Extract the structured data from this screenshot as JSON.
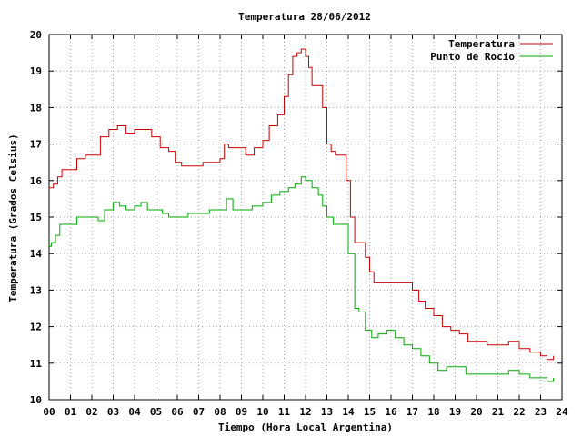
{
  "chart_data": {
    "type": "line",
    "title": "Temperatura 28/06/2012",
    "xlabel": "Tiempo (Hora Local Argentina)",
    "ylabel": "Temperatura (Grados Celsius)",
    "xlim": [
      0,
      24
    ],
    "ylim": [
      10,
      20
    ],
    "x_ticks": [
      "00",
      "01",
      "02",
      "03",
      "04",
      "05",
      "06",
      "07",
      "08",
      "09",
      "10",
      "11",
      "12",
      "13",
      "14",
      "15",
      "16",
      "17",
      "18",
      "19",
      "20",
      "21",
      "22",
      "23",
      "24"
    ],
    "y_ticks": [
      "10",
      "11",
      "12",
      "13",
      "14",
      "15",
      "16",
      "17",
      "18",
      "19",
      "20"
    ],
    "grid": true,
    "legend_position": "top-right",
    "series": [
      {
        "name": "Temperatura",
        "color": "#cc0000",
        "x": [
          0,
          0.1,
          0.2,
          0.4,
          0.6,
          1.0,
          1.3,
          1.7,
          2.0,
          2.4,
          2.8,
          3.2,
          3.6,
          4.0,
          4.4,
          4.8,
          5.2,
          5.6,
          5.9,
          6.2,
          6.5,
          6.8,
          7.2,
          7.6,
          8.0,
          8.2,
          8.4,
          8.8,
          9.2,
          9.6,
          10.0,
          10.3,
          10.7,
          11.0,
          11.2,
          11.4,
          11.6,
          11.8,
          12.0,
          12.15,
          12.3,
          12.5,
          12.8,
          13.0,
          13.2,
          13.4,
          13.6,
          13.9,
          14.1,
          14.3,
          14.5,
          14.8,
          15.0,
          15.2,
          15.4,
          15.6,
          16.0,
          16.5,
          17.0,
          17.3,
          17.6,
          18.0,
          18.4,
          18.8,
          19.2,
          19.6,
          20.0,
          20.5,
          21.0,
          21.5,
          22.0,
          22.5,
          23.0,
          23.3,
          23.6
        ],
        "values": [
          15.8,
          15.8,
          15.9,
          16.1,
          16.3,
          16.3,
          16.6,
          16.7,
          16.7,
          17.2,
          17.4,
          17.5,
          17.3,
          17.4,
          17.4,
          17.2,
          16.9,
          16.8,
          16.5,
          16.4,
          16.4,
          16.4,
          16.5,
          16.5,
          16.6,
          17.0,
          16.9,
          16.9,
          16.7,
          16.9,
          17.1,
          17.5,
          17.8,
          18.3,
          18.9,
          19.4,
          19.5,
          19.6,
          19.4,
          19.1,
          18.6,
          18.6,
          18.0,
          17.0,
          16.8,
          16.7,
          16.7,
          16.0,
          15.0,
          14.3,
          14.3,
          13.9,
          13.5,
          13.2,
          13.2,
          13.2,
          13.2,
          13.2,
          13.0,
          12.7,
          12.5,
          12.3,
          12.0,
          11.9,
          11.8,
          11.6,
          11.6,
          11.5,
          11.5,
          11.6,
          11.4,
          11.3,
          11.2,
          11.1,
          11.2
        ]
      },
      {
        "name": "Punto de Rocío",
        "color": "#00aa00",
        "x": [
          0,
          0.1,
          0.3,
          0.5,
          0.7,
          1.0,
          1.3,
          1.7,
          2.0,
          2.3,
          2.6,
          3.0,
          3.3,
          3.6,
          4.0,
          4.3,
          4.6,
          5.0,
          5.3,
          5.6,
          6.0,
          6.5,
          7.0,
          7.5,
          8.0,
          8.3,
          8.6,
          9.0,
          9.5,
          10.0,
          10.4,
          10.8,
          11.2,
          11.5,
          11.8,
          12.0,
          12.3,
          12.6,
          12.8,
          13.0,
          13.3,
          13.6,
          14.0,
          14.3,
          14.5,
          14.8,
          15.1,
          15.4,
          15.8,
          16.2,
          16.6,
          17.0,
          17.4,
          17.8,
          18.2,
          18.6,
          19.0,
          19.5,
          20.0,
          20.5,
          21.0,
          21.5,
          22.0,
          22.5,
          23.0,
          23.3,
          23.6
        ],
        "values": [
          14.2,
          14.3,
          14.5,
          14.8,
          14.8,
          14.8,
          15.0,
          15.0,
          15.0,
          14.9,
          15.2,
          15.4,
          15.3,
          15.2,
          15.3,
          15.4,
          15.2,
          15.2,
          15.1,
          15.0,
          15.0,
          15.1,
          15.1,
          15.2,
          15.2,
          15.5,
          15.2,
          15.2,
          15.3,
          15.4,
          15.6,
          15.7,
          15.8,
          15.9,
          16.1,
          16.0,
          15.8,
          15.6,
          15.3,
          15.0,
          14.8,
          14.8,
          14.0,
          12.5,
          12.4,
          11.9,
          11.7,
          11.8,
          11.9,
          11.7,
          11.5,
          11.4,
          11.2,
          11.0,
          10.8,
          10.9,
          10.9,
          10.7,
          10.7,
          10.7,
          10.7,
          10.8,
          10.7,
          10.6,
          10.6,
          10.5,
          10.6
        ]
      }
    ]
  }
}
